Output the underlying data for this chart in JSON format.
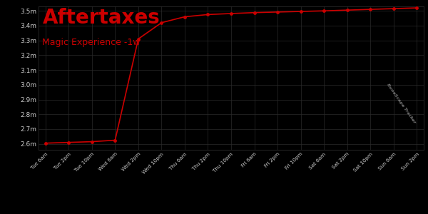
{
  "title": "Aftertaxes",
  "subtitle": "Magic Experience -1w",
  "background_color": "#000000",
  "plot_bg_color": "#000000",
  "line_color": "#cc0000",
  "text_color": "#cccccc",
  "title_color": "#cc0000",
  "subtitle_color": "#cc0000",
  "ylim": [
    2560000,
    3530000
  ],
  "yticks": [
    2600000,
    2700000,
    2800000,
    2900000,
    3000000,
    3100000,
    3200000,
    3300000,
    3400000,
    3500000
  ],
  "ytick_labels": [
    "2.6m",
    "2.7m",
    "2.8m",
    "2.9m",
    "3.0m",
    "3.1m",
    "3.2m",
    "3.3m",
    "3.4m",
    "3.5m"
  ],
  "xtick_labels": [
    "Tue 6am",
    "Tue 2pm",
    "Tue 10pm",
    "Wed 6am",
    "Wed 2pm",
    "Wed 10pm",
    "Thu 6am",
    "Thu 2pm",
    "Thu 10pm",
    "Fri 6am",
    "Fri 2pm",
    "Fri 10pm",
    "Sat 6am",
    "Sat 2pm",
    "Sat 10pm",
    "Sun 6am",
    "Sun 2pm"
  ],
  "x_values": [
    0,
    1,
    2,
    3,
    4,
    5,
    6,
    7,
    8,
    9,
    10,
    11,
    12,
    13,
    14,
    15,
    16
  ],
  "y_values": [
    2605000,
    2610000,
    2615000,
    2625000,
    3310000,
    3420000,
    3460000,
    3475000,
    3482000,
    3488000,
    3492000,
    3496000,
    3500000,
    3505000,
    3510000,
    3515000,
    3520000
  ],
  "watermark_text": "RuneScape Tracker"
}
